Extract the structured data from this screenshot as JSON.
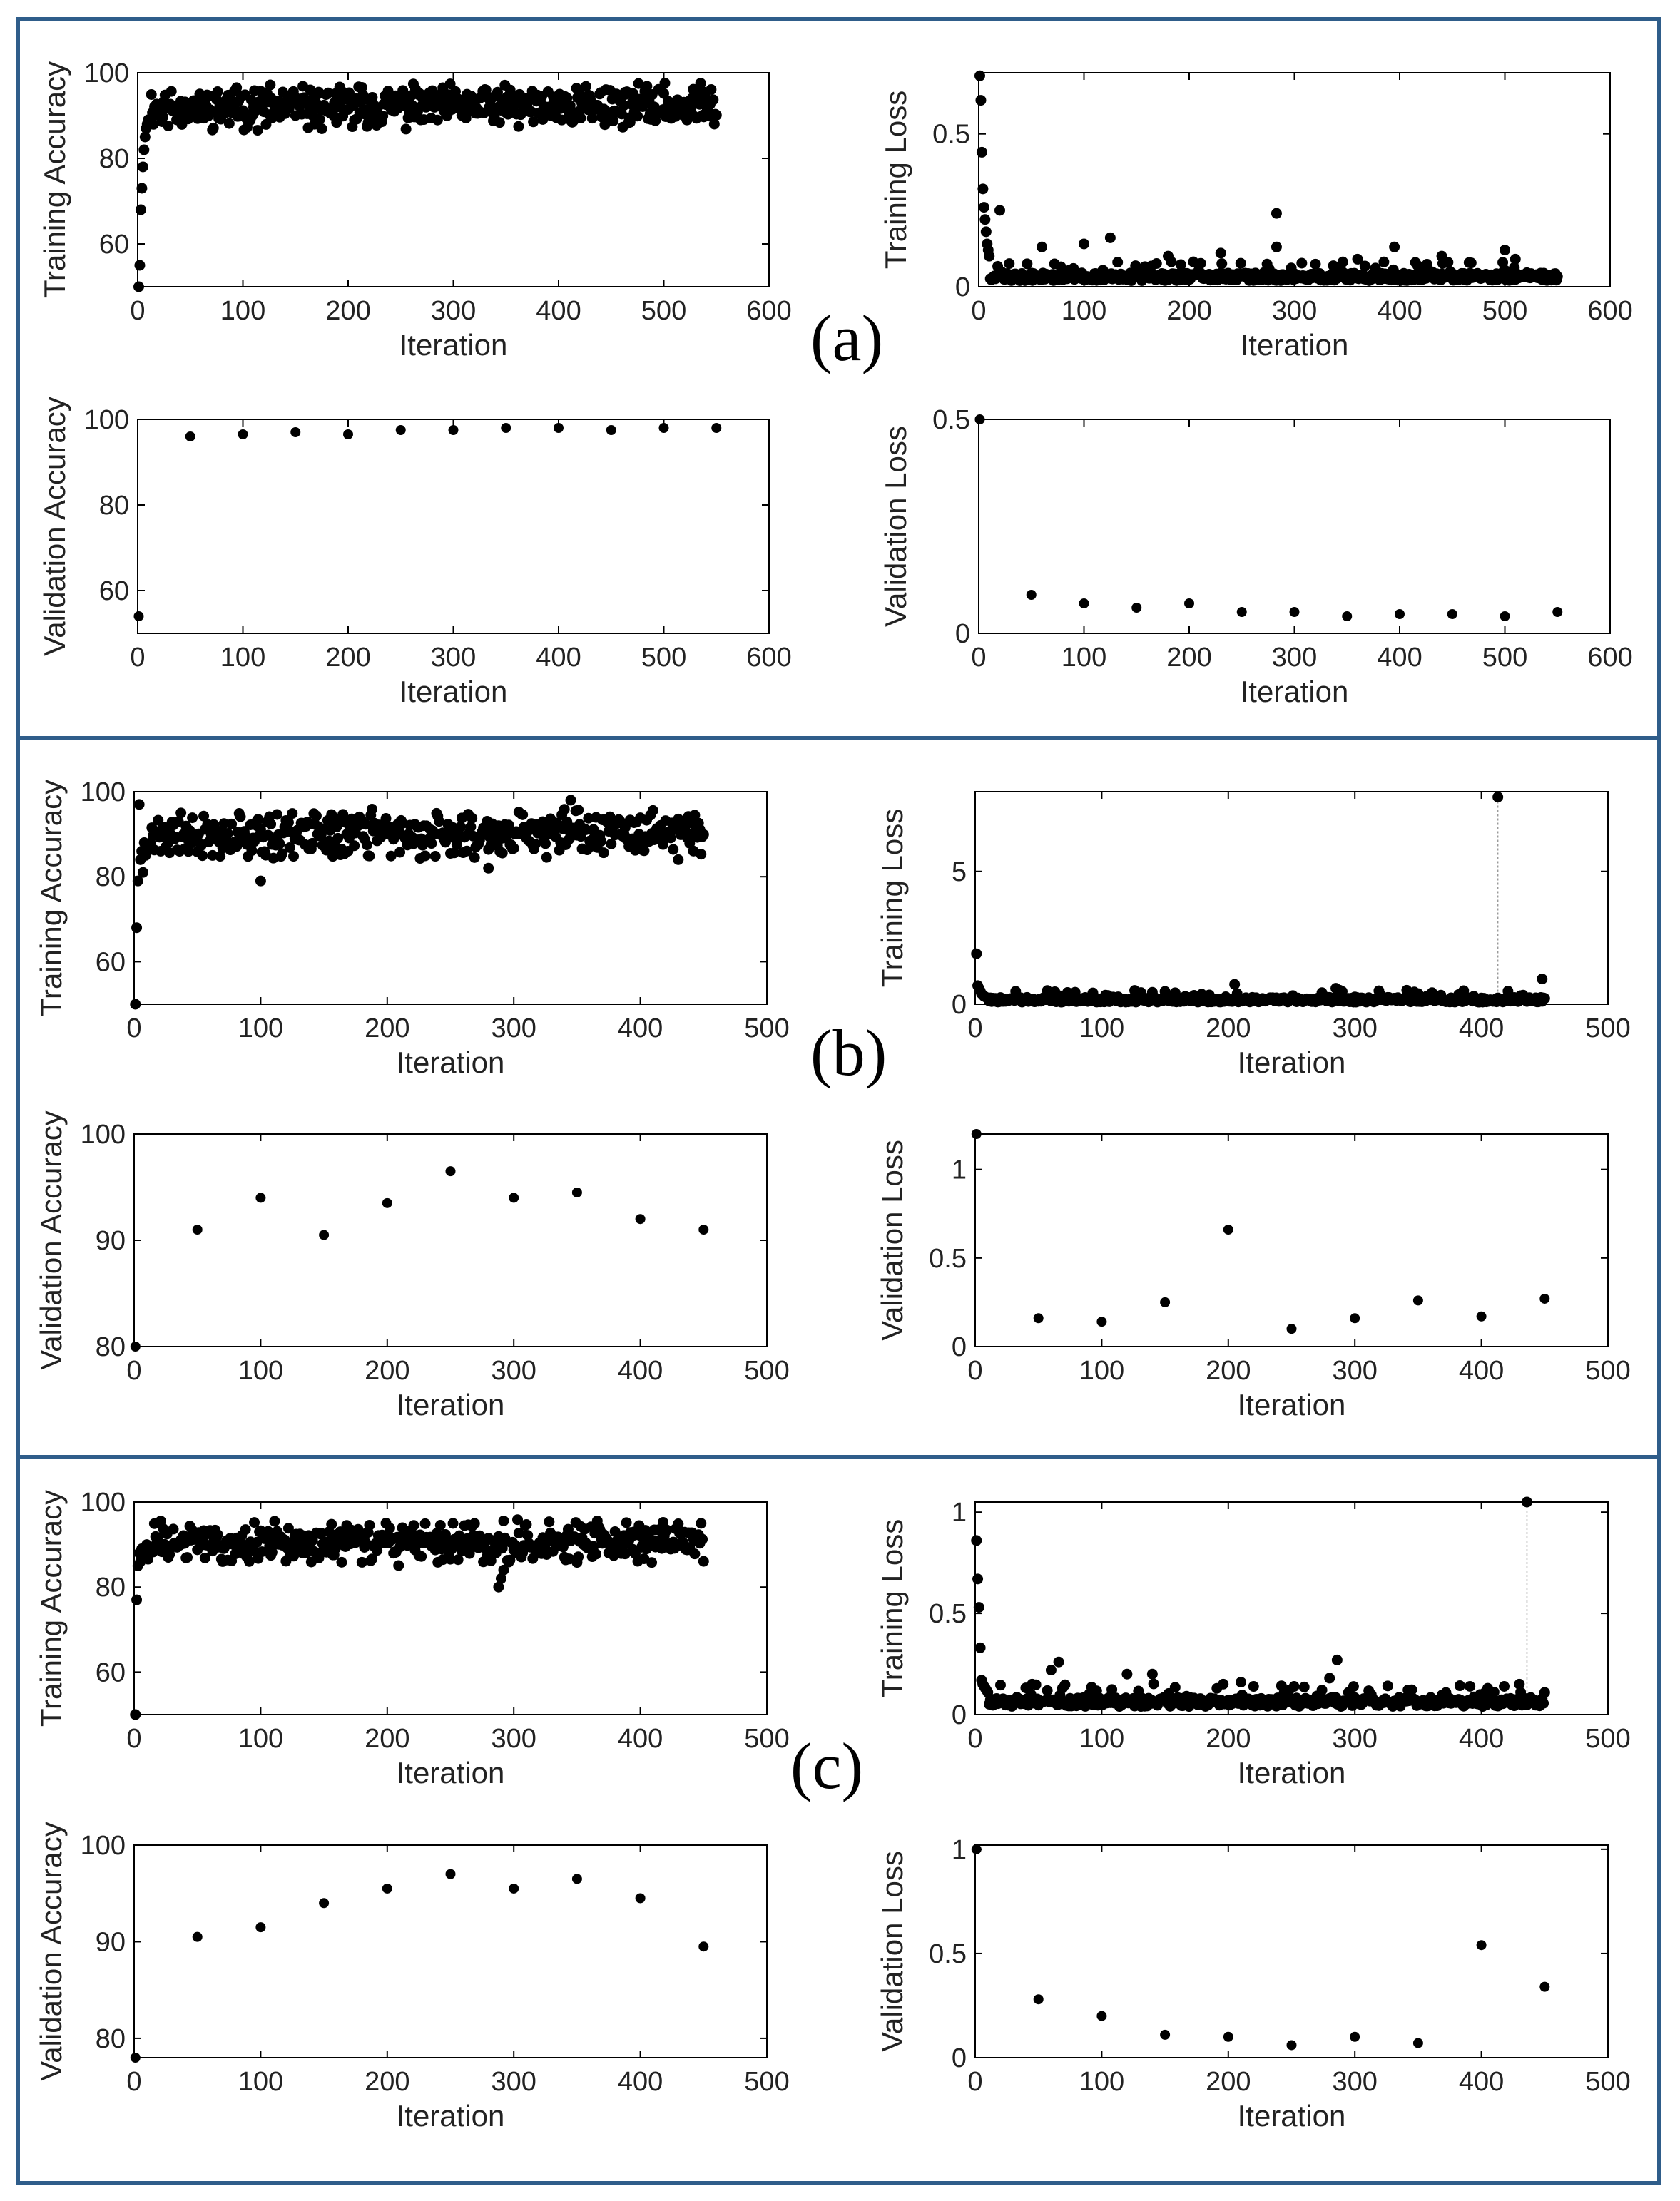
{
  "colors": {
    "frame": "#2f5d8a",
    "marker": "#000000",
    "axis": "#000000",
    "background": "#ffffff"
  },
  "panels": [
    {
      "label": "(a)"
    },
    {
      "label": "(b)"
    },
    {
      "label": "(c)"
    }
  ],
  "chart_data": [
    {
      "id": "a-train-acc",
      "panel": "(a)",
      "type": "scatter",
      "xlabel": "Iteration",
      "ylabel": "Training Accuracy",
      "xlim": [
        0,
        600
      ],
      "ylim": [
        50,
        100
      ],
      "xticks": [
        0,
        100,
        200,
        300,
        400,
        500,
        600
      ],
      "yticks": [
        60,
        80,
        100
      ],
      "generated": {
        "kind": "acc",
        "n": 550,
        "start": [
          50,
          55,
          68,
          73,
          78,
          82,
          85,
          87,
          88,
          89
        ],
        "center": 92,
        "spread": 4,
        "seed": 11
      }
    },
    {
      "id": "a-train-loss",
      "panel": "(a)",
      "type": "scatter",
      "xlabel": "Iteration",
      "ylabel": "Training Loss",
      "xlim": [
        0,
        600
      ],
      "ylim": [
        0,
        0.7
      ],
      "xticks": [
        0,
        100,
        200,
        300,
        400,
        500,
        600
      ],
      "yticks": [
        0,
        0.5
      ],
      "generated": {
        "kind": "loss",
        "n": 550,
        "start": [
          0.69,
          0.61,
          0.44,
          0.32,
          0.26,
          0.22,
          0.18,
          0.14,
          0.12,
          0.1
        ],
        "base": 0.02,
        "spread": 0.025,
        "seed": 12
      },
      "outliers": [
        [
          20,
          0.25
        ],
        [
          60,
          0.13
        ],
        [
          100,
          0.14
        ],
        [
          125,
          0.16
        ],
        [
          180,
          0.1
        ],
        [
          230,
          0.11
        ],
        [
          283,
          0.24
        ],
        [
          283,
          0.13
        ],
        [
          360,
          0.09
        ],
        [
          395,
          0.13
        ],
        [
          440,
          0.1
        ],
        [
          500,
          0.12
        ],
        [
          510,
          0.09
        ]
      ]
    },
    {
      "id": "a-val-acc",
      "panel": "(a)",
      "type": "scatter",
      "xlabel": "Iteration",
      "ylabel": "Validation Accuracy",
      "xlim": [
        0,
        600
      ],
      "ylim": [
        50,
        100
      ],
      "xticks": [
        0,
        100,
        200,
        300,
        400,
        500,
        600
      ],
      "yticks": [
        60,
        80,
        100
      ],
      "x": [
        1,
        50,
        100,
        150,
        200,
        250,
        300,
        350,
        400,
        450,
        500,
        550
      ],
      "y": [
        54,
        96,
        96.5,
        97,
        96.5,
        97.5,
        97.5,
        98,
        98,
        97.5,
        98,
        98
      ]
    },
    {
      "id": "a-val-loss",
      "panel": "(a)",
      "type": "scatter",
      "xlabel": "Iteration",
      "ylabel": "Validation Loss",
      "xlim": [
        0,
        600
      ],
      "ylim": [
        0,
        0.5
      ],
      "xticks": [
        0,
        100,
        200,
        300,
        400,
        500,
        600
      ],
      "yticks": [
        0,
        0.5
      ],
      "x": [
        1,
        50,
        100,
        150,
        200,
        250,
        300,
        350,
        400,
        450,
        500,
        550
      ],
      "y": [
        0.5,
        0.09,
        0.07,
        0.06,
        0.07,
        0.05,
        0.05,
        0.04,
        0.045,
        0.045,
        0.04,
        0.05
      ]
    },
    {
      "id": "b-train-acc",
      "panel": "(b)",
      "type": "scatter",
      "xlabel": "Iteration",
      "ylabel": "Training Accuracy",
      "xlim": [
        0,
        500
      ],
      "ylim": [
        50,
        100
      ],
      "xticks": [
        0,
        100,
        200,
        300,
        400,
        500
      ],
      "yticks": [
        60,
        80,
        100
      ],
      "generated": {
        "kind": "acc",
        "n": 450,
        "start": [
          50,
          68,
          79,
          97,
          84,
          86,
          81,
          88,
          85,
          87
        ],
        "center": 90,
        "spread": 4.5,
        "seed": 21
      },
      "outliers": [
        [
          100,
          79
        ],
        [
          280,
          82
        ],
        [
          430,
          84
        ],
        [
          345,
          98
        ]
      ]
    },
    {
      "id": "b-train-loss",
      "panel": "(b)",
      "type": "scatter",
      "xlabel": "Iteration",
      "ylabel": "Training Loss",
      "xlim": [
        0,
        500
      ],
      "ylim": [
        0,
        8
      ],
      "xticks": [
        0,
        100,
        200,
        300,
        400,
        500
      ],
      "yticks": [
        0,
        5
      ],
      "generated": {
        "kind": "loss",
        "n": 450,
        "start": [
          1.9,
          0.7,
          0.6,
          0.5,
          0.4,
          0.35,
          0.3,
          0.28,
          0.25,
          0.22
        ],
        "base": 0.08,
        "spread": 0.18,
        "seed": 22
      },
      "spikes": [
        [
          413,
          7.8
        ]
      ],
      "outliers": [
        [
          205,
          0.75
        ],
        [
          285,
          0.6
        ],
        [
          448,
          0.95
        ],
        [
          140,
          0.45
        ],
        [
          350,
          0.4
        ]
      ]
    },
    {
      "id": "b-val-acc",
      "panel": "(b)",
      "type": "scatter",
      "xlabel": "Iteration",
      "ylabel": "Validation Accuracy",
      "xlim": [
        0,
        500
      ],
      "ylim": [
        80,
        100
      ],
      "xticks": [
        0,
        100,
        200,
        300,
        400,
        500
      ],
      "yticks": [
        80,
        90,
        100
      ],
      "x": [
        1,
        50,
        100,
        150,
        200,
        250,
        300,
        350,
        400,
        450
      ],
      "y": [
        79.5,
        91,
        94,
        90.5,
        93.5,
        96.5,
        94,
        94.5,
        92,
        91
      ]
    },
    {
      "id": "b-val-loss",
      "panel": "(b)",
      "type": "scatter",
      "xlabel": "Iteration",
      "ylabel": "Validation Loss",
      "xlim": [
        0,
        500
      ],
      "ylim": [
        0,
        1.2
      ],
      "xticks": [
        0,
        100,
        200,
        300,
        400,
        500
      ],
      "yticks": [
        0,
        0.5,
        1
      ],
      "x": [
        1,
        50,
        100,
        150,
        200,
        250,
        300,
        350,
        400,
        450
      ],
      "y": [
        1.2,
        0.16,
        0.14,
        0.25,
        0.66,
        0.1,
        0.16,
        0.26,
        0.17,
        0.27
      ]
    },
    {
      "id": "c-train-acc",
      "panel": "(c)",
      "type": "scatter",
      "xlabel": "Iteration",
      "ylabel": "Training Accuracy",
      "xlim": [
        0,
        500
      ],
      "ylim": [
        50,
        100
      ],
      "xticks": [
        0,
        100,
        200,
        300,
        400,
        500
      ],
      "yticks": [
        60,
        80,
        100
      ],
      "generated": {
        "kind": "acc",
        "n": 450,
        "start": [
          50,
          77,
          85,
          88,
          86,
          89,
          87,
          88,
          89,
          90
        ],
        "center": 90.5,
        "spread": 4,
        "seed": 31
      },
      "outliers": [
        [
          288,
          80
        ],
        [
          290,
          82
        ],
        [
          292,
          84
        ]
      ]
    },
    {
      "id": "c-train-loss",
      "panel": "(c)",
      "type": "scatter",
      "xlabel": "Iteration",
      "ylabel": "Training Loss",
      "xlim": [
        0,
        500
      ],
      "ylim": [
        0,
        1.05
      ],
      "xticks": [
        0,
        100,
        200,
        300,
        400,
        500
      ],
      "yticks": [
        0,
        0.5,
        1
      ],
      "generated": {
        "kind": "loss",
        "n": 450,
        "start": [
          0.86,
          0.67,
          0.53,
          0.33,
          0.17,
          0.15,
          0.14,
          0.13,
          0.12,
          0.11
        ],
        "base": 0.04,
        "spread": 0.045,
        "seed": 32
      },
      "spikes": [
        [
          436,
          1.05
        ]
      ],
      "outliers": [
        [
          45,
          0.15
        ],
        [
          60,
          0.22
        ],
        [
          66,
          0.26
        ],
        [
          120,
          0.2
        ],
        [
          140,
          0.2
        ],
        [
          210,
          0.16
        ],
        [
          280,
          0.18
        ],
        [
          286,
          0.27
        ],
        [
          405,
          0.13
        ],
        [
          430,
          0.15
        ]
      ]
    },
    {
      "id": "c-val-acc",
      "panel": "(c)",
      "type": "scatter",
      "xlabel": "Iteration",
      "ylabel": "Validation Accuracy",
      "xlim": [
        0,
        500
      ],
      "ylim": [
        78,
        100
      ],
      "xticks": [
        0,
        100,
        200,
        300,
        400,
        500
      ],
      "yticks": [
        80,
        90,
        100
      ],
      "x": [
        1,
        50,
        100,
        150,
        200,
        250,
        300,
        350,
        400,
        450
      ],
      "y": [
        78,
        90.5,
        91.5,
        94,
        95.5,
        97,
        95.5,
        96.5,
        94.5,
        89.5
      ]
    },
    {
      "id": "c-val-loss",
      "panel": "(c)",
      "type": "scatter",
      "xlabel": "Iteration",
      "ylabel": "Validation Loss",
      "xlim": [
        0,
        500
      ],
      "ylim": [
        0,
        1.02
      ],
      "xticks": [
        0,
        100,
        200,
        300,
        400,
        500
      ],
      "yticks": [
        0,
        0.5,
        1
      ],
      "x": [
        1,
        50,
        100,
        150,
        200,
        250,
        300,
        350,
        400,
        450
      ],
      "y": [
        1.0,
        0.28,
        0.2,
        0.11,
        0.1,
        0.06,
        0.1,
        0.07,
        0.54,
        0.34
      ]
    }
  ]
}
